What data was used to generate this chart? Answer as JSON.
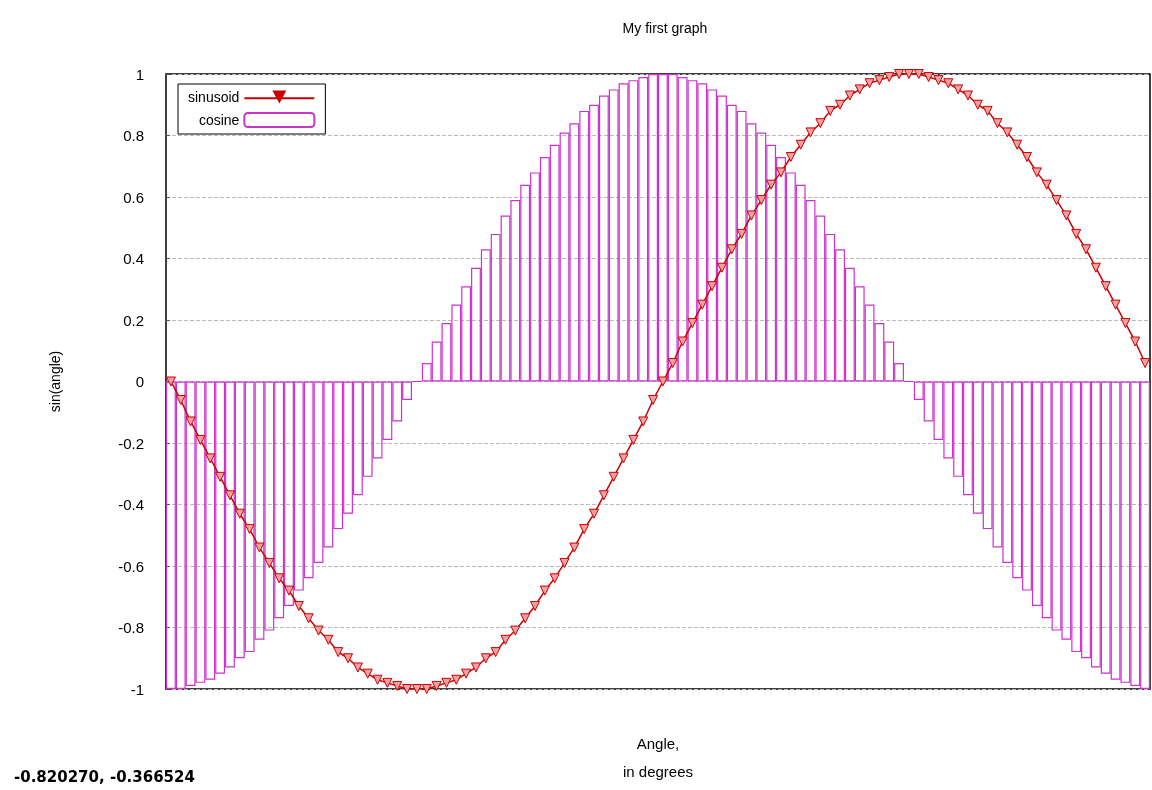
{
  "chart_data": {
    "type": "line",
    "title": "My first graph",
    "xlabel": "Angle,\nin degrees",
    "ylabel": "sin(angle)",
    "annotations": [
      "-0.820270, -0.366524"
    ],
    "categories": [
      null,
      null,
      null,
      null,
      null,
      null,
      null,
      null,
      null,
      null,
      null,
      null,
      null,
      null,
      null,
      null,
      null,
      null,
      null,
      null,
      null,
      null,
      null,
      null,
      null,
      null,
      null,
      null,
      null,
      null,
      null,
      null,
      null,
      null,
      null,
      null,
      null,
      null,
      null,
      null,
      null,
      null,
      null,
      null,
      null,
      null,
      null,
      null,
      null,
      null,
      null,
      null,
      null,
      null,
      null,
      null,
      null,
      null,
      null,
      null,
      null,
      null,
      null,
      null,
      null,
      null,
      null,
      null,
      null,
      null,
      null,
      null,
      null,
      null,
      null,
      null,
      null,
      null,
      null,
      null,
      null,
      null,
      null,
      null,
      null,
      null,
      null,
      null,
      null,
      null,
      null,
      null,
      null,
      null,
      null,
      null,
      null,
      null,
      null,
      null
    ],
    "series": [
      {
        "name": "sinusoid",
        "color": "#cc0000",
        "values": [
          0,
          -0.06,
          -0.13,
          -0.19,
          -0.25,
          -0.31,
          -0.37,
          -0.43,
          -0.48,
          -0.54,
          -0.59,
          -0.64,
          -0.68,
          -0.73,
          -0.77,
          -0.81,
          -0.84,
          -0.88,
          -0.9,
          -0.93,
          -0.95,
          -0.97,
          -0.98,
          -0.99,
          -1,
          -1,
          -1,
          -0.99,
          -0.98,
          -0.97,
          -0.95,
          -0.93,
          -0.9,
          -0.88,
          -0.84,
          -0.81,
          -0.77,
          -0.73,
          -0.68,
          -0.64,
          -0.59,
          -0.54,
          -0.48,
          -0.43,
          -0.37,
          -0.31,
          -0.25,
          -0.19,
          -0.13,
          -0.06,
          0,
          0.06,
          0.13,
          0.19,
          0.25,
          0.31,
          0.37,
          0.43,
          0.48,
          0.54,
          0.59,
          0.64,
          0.68,
          0.73,
          0.77,
          0.81,
          0.84,
          0.88,
          0.9,
          0.93,
          0.95,
          0.97,
          0.98,
          0.99,
          1,
          1,
          1,
          0.99,
          0.98,
          0.97,
          0.95,
          0.93,
          0.9,
          0.88,
          0.84,
          0.81,
          0.77,
          0.73,
          0.68,
          0.64,
          0.59,
          0.54,
          0.48,
          0.43,
          0.37,
          0.31,
          0.25,
          0.19,
          0.13,
          0.06
        ]
      },
      {
        "name": "cosine",
        "type": "bar",
        "color": "#cc33cc",
        "values": [
          -1,
          -1,
          -0.99,
          -0.98,
          -0.97,
          -0.95,
          -0.93,
          -0.9,
          -0.88,
          -0.84,
          -0.81,
          -0.77,
          -0.73,
          -0.68,
          -0.64,
          -0.59,
          -0.54,
          -0.48,
          -0.43,
          -0.37,
          -0.31,
          -0.25,
          -0.19,
          -0.13,
          -0.06,
          0,
          0.06,
          0.13,
          0.19,
          0.25,
          0.31,
          0.37,
          0.43,
          0.48,
          0.54,
          0.59,
          0.64,
          0.68,
          0.73,
          0.77,
          0.81,
          0.84,
          0.88,
          0.9,
          0.93,
          0.95,
          0.97,
          0.98,
          0.99,
          1,
          1,
          1,
          0.99,
          0.98,
          0.97,
          0.95,
          0.93,
          0.9,
          0.88,
          0.84,
          0.81,
          0.77,
          0.73,
          0.68,
          0.64,
          0.59,
          0.54,
          0.48,
          0.43,
          0.37,
          0.31,
          0.25,
          0.19,
          0.13,
          0.06,
          0,
          -0.06,
          -0.13,
          -0.19,
          -0.25,
          -0.31,
          -0.37,
          -0.43,
          -0.48,
          -0.54,
          -0.59,
          -0.64,
          -0.68,
          -0.73,
          -0.77,
          -0.81,
          -0.84,
          -0.88,
          -0.9,
          -0.93,
          -0.95,
          -0.97,
          -0.98,
          -0.99,
          -1
        ]
      }
    ],
    "ylim": [
      -1,
      1
    ],
    "yticks": [
      -1,
      -0.8,
      -0.6,
      -0.4,
      -0.2,
      0,
      0.2,
      0.4,
      0.6,
      0.8,
      1
    ],
    "grid": "y",
    "legend": "top left",
    "tick_labels": "y",
    "marker": "triangle",
    "line_style": "solid"
  }
}
